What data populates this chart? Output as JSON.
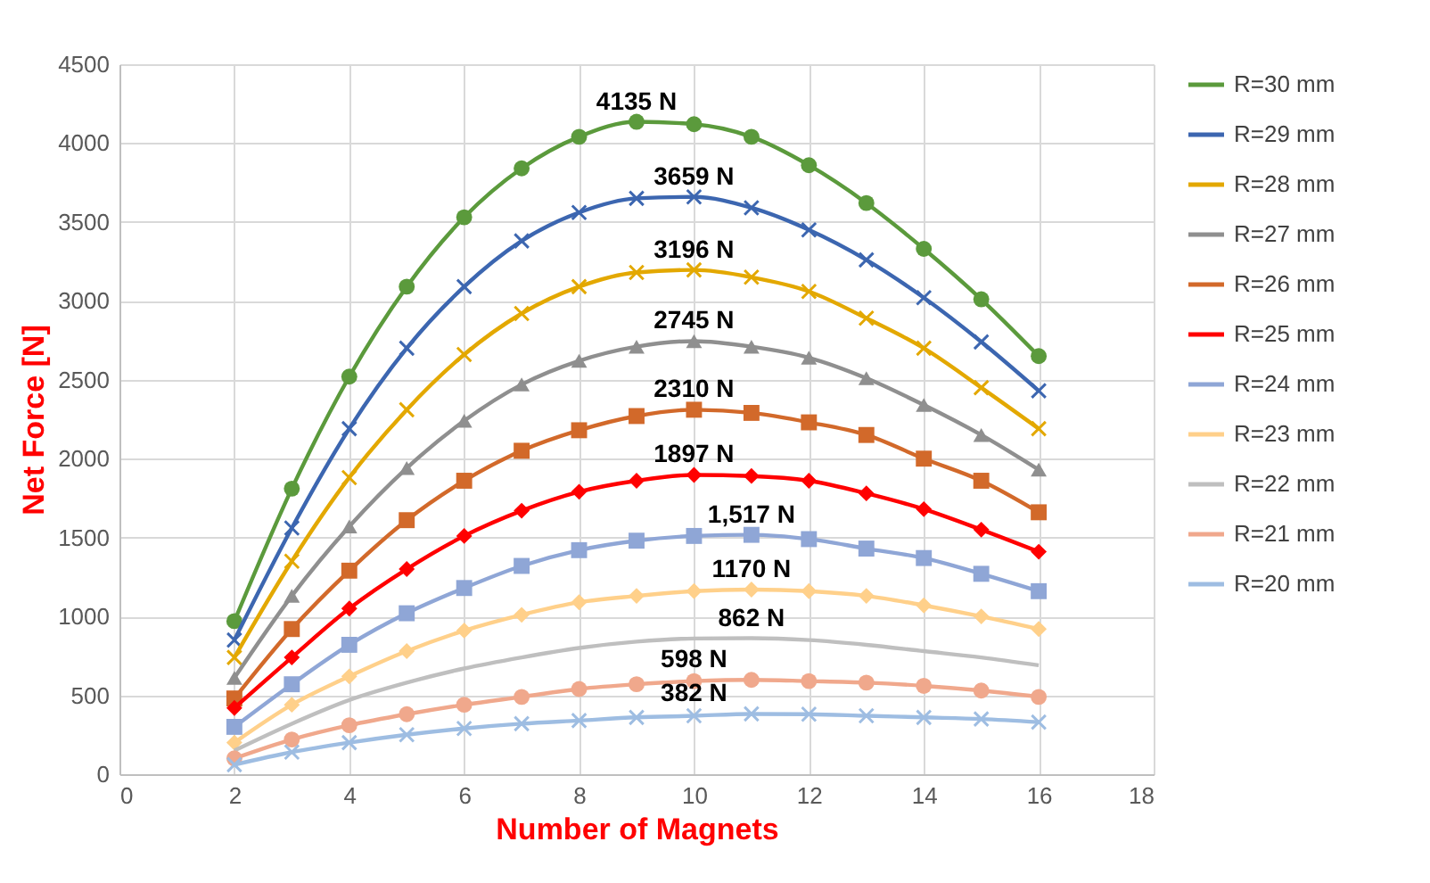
{
  "chart_data": {
    "type": "line",
    "xlabel": "Number of Magnets",
    "ylabel": "Net Force [N]",
    "x": [
      2,
      3,
      4,
      5,
      6,
      7,
      8,
      9,
      10,
      11,
      12,
      13,
      14,
      15,
      16
    ],
    "xlim": [
      0,
      18
    ],
    "xticks": [
      0,
      2,
      4,
      6,
      8,
      10,
      12,
      14,
      16,
      18
    ],
    "ylim": [
      0,
      4500
    ],
    "yticks": [
      0,
      500,
      1000,
      1500,
      2000,
      2500,
      3000,
      3500,
      4000,
      4500
    ],
    "grid": true,
    "legend": "right",
    "series": [
      {
        "name": "R=30 mm",
        "color": "#5b9a3c",
        "marker": "circle",
        "values": [
          970,
          1810,
          2520,
          3090,
          3530,
          3840,
          4040,
          4135,
          4120,
          4040,
          3860,
          3620,
          3330,
          3010,
          2650
        ]
      },
      {
        "name": "R=29 mm",
        "color": "#3c66b0",
        "marker": "cross",
        "values": [
          850,
          1560,
          2190,
          2700,
          3090,
          3380,
          3560,
          3650,
          3659,
          3590,
          3450,
          3260,
          3020,
          2740,
          2430
        ]
      },
      {
        "name": "R=28 mm",
        "color": "#e3a800",
        "marker": "cross",
        "values": [
          740,
          1350,
          1880,
          2310,
          2660,
          2920,
          3090,
          3180,
          3196,
          3150,
          3060,
          2890,
          2700,
          2450,
          2190
        ]
      },
      {
        "name": "R=27 mm",
        "color": "#8f8f8f",
        "marker": "triangle",
        "values": [
          610,
          1130,
          1570,
          1940,
          2240,
          2470,
          2620,
          2710,
          2745,
          2710,
          2640,
          2510,
          2340,
          2150,
          1930
        ]
      },
      {
        "name": "R=26 mm",
        "color": "#d2692a",
        "marker": "square",
        "values": [
          480,
          920,
          1290,
          1610,
          1860,
          2050,
          2180,
          2270,
          2310,
          2290,
          2230,
          2150,
          2000,
          1860,
          1660
        ]
      },
      {
        "name": "R=25 mm",
        "color": "#ff0000",
        "marker": "diamond",
        "values": [
          420,
          740,
          1050,
          1300,
          1510,
          1670,
          1790,
          1860,
          1897,
          1890,
          1860,
          1780,
          1680,
          1550,
          1410
        ]
      },
      {
        "name": "R=24 mm",
        "color": "#8fa6d6",
        "marker": "square",
        "values": [
          300,
          570,
          820,
          1020,
          1180,
          1320,
          1420,
          1480,
          1510,
          1517,
          1490,
          1430,
          1370,
          1270,
          1160
        ]
      },
      {
        "name": "R=23 mm",
        "color": "#ffd08a",
        "marker": "diamond",
        "values": [
          200,
          440,
          620,
          780,
          910,
          1010,
          1090,
          1130,
          1160,
          1170,
          1160,
          1130,
          1070,
          1000,
          920
        ]
      },
      {
        "name": "R=22 mm",
        "color": "#bfbfbf",
        "marker": "none",
        "values": [
          150,
          320,
          470,
          580,
          670,
          740,
          800,
          840,
          860,
          862,
          850,
          820,
          780,
          740,
          690
        ]
      },
      {
        "name": "R=21 mm",
        "color": "#f0a88c",
        "marker": "circle",
        "values": [
          100,
          220,
          310,
          380,
          440,
          490,
          540,
          570,
          590,
          598,
          590,
          580,
          560,
          530,
          490
        ]
      },
      {
        "name": "R=20 mm",
        "color": "#9ebde2",
        "marker": "cross",
        "values": [
          60,
          140,
          200,
          250,
          290,
          320,
          340,
          360,
          370,
          382,
          380,
          370,
          360,
          350,
          330
        ]
      }
    ],
    "annotations": [
      {
        "text": "4135 N",
        "x": 9,
        "y": 4135
      },
      {
        "text": "3659 N",
        "x": 10,
        "y": 3659
      },
      {
        "text": "3196 N",
        "x": 10,
        "y": 3196
      },
      {
        "text": "2745 N",
        "x": 10,
        "y": 2745
      },
      {
        "text": "2310 N",
        "x": 10,
        "y": 2310
      },
      {
        "text": "1897 N",
        "x": 10,
        "y": 1897
      },
      {
        "text": "1,517 N",
        "x": 11,
        "y": 1517
      },
      {
        "text": "1170 N",
        "x": 11,
        "y": 1170
      },
      {
        "text": "862 N",
        "x": 11,
        "y": 862
      },
      {
        "text": "598 N",
        "x": 10,
        "y": 598
      },
      {
        "text": "382 N",
        "x": 10,
        "y": 382
      }
    ]
  }
}
